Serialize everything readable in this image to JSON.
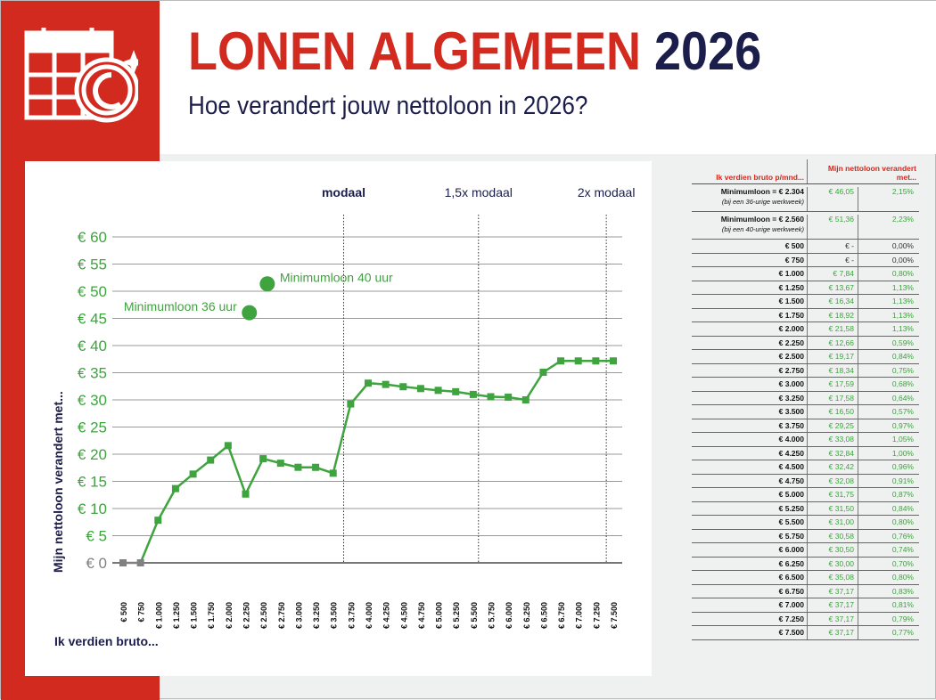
{
  "header": {
    "title_red": "LONEN ALGEMEEN",
    "title_year": "2026",
    "subtitle": "Hoe verandert jouw nettoloon in 2026?",
    "icon": "calendar-coin-icon"
  },
  "colors": {
    "brand_red": "#d22a1f",
    "navy": "#1b1e4b",
    "green": "#3fa33f",
    "grey": "#808080"
  },
  "chart_data": {
    "type": "line",
    "title": "",
    "xlabel": "Ik verdien bruto...",
    "ylabel": "Mijn nettoloon verandert met...",
    "ylim": [
      0,
      60
    ],
    "yticks": [
      "€ 0",
      "€ 5",
      "€ 10",
      "€ 15",
      "€ 20",
      "€ 25",
      "€ 30",
      "€ 35",
      "€ 40",
      "€ 45",
      "€ 50",
      "€ 55",
      "€ 60"
    ],
    "grid": true,
    "categories": [
      "€ 500",
      "€ 750",
      "€ 1.000",
      "€ 1.250",
      "€ 1.500",
      "€ 1.750",
      "€ 2.000",
      "€ 2.250",
      "€ 2.500",
      "€ 2.750",
      "€ 3.000",
      "€ 3.250",
      "€ 3.500",
      "€ 3.750",
      "€ 4.000",
      "€ 4.250",
      "€ 4.500",
      "€ 4.750",
      "€ 5.000",
      "€ 5.250",
      "€ 5.500",
      "€ 5.750",
      "€ 6.000",
      "€ 6.250",
      "€ 6.500",
      "€ 6.750",
      "€ 7.000",
      "€ 7.250",
      "€ 7.500"
    ],
    "x": [
      500,
      750,
      1000,
      1250,
      1500,
      1750,
      2000,
      2250,
      2500,
      2750,
      3000,
      3250,
      3500,
      3750,
      4000,
      4250,
      4500,
      4750,
      5000,
      5250,
      5500,
      5750,
      6000,
      6250,
      6500,
      6750,
      7000,
      7250,
      7500
    ],
    "values": [
      0,
      0,
      7.84,
      13.67,
      16.34,
      18.92,
      21.58,
      12.66,
      19.17,
      18.34,
      17.59,
      17.58,
      16.5,
      29.25,
      33.08,
      32.84,
      32.42,
      32.08,
      31.75,
      31.5,
      31.0,
      30.58,
      30.5,
      30.0,
      35.08,
      37.17,
      37.17,
      37.17,
      37.17
    ],
    "points": [
      {
        "label": "Minimumloon 36 uur",
        "x": 2304,
        "y": 46.05
      },
      {
        "label": "Minimumloon 40 uur",
        "x": 2560,
        "y": 51.36
      }
    ],
    "reference_lines": [
      {
        "label": "modaal",
        "x": 3650
      },
      {
        "label": "1,5x modaal",
        "x": 5575
      },
      {
        "label": "2x modaal",
        "x": 7400
      }
    ]
  },
  "table": {
    "col1_header": "Ik verdien bruto p/mnd...",
    "col2_header": "Mijn nettoloon verandert met...",
    "min_rows": [
      {
        "label": "Minimumloon = € 2.304",
        "note": "(bij een 36-urige werkweek)",
        "amount": "€ 46,05",
        "pct": "2,15%"
      },
      {
        "label": "Minimumloon = € 2.560",
        "note": "(bij een 40-urige werkweek)",
        "amount": "€ 51,36",
        "pct": "2,23%"
      }
    ],
    "rows": [
      [
        "€ 500",
        "€ -",
        "0,00%"
      ],
      [
        "€ 750",
        "€ -",
        "0,00%"
      ],
      [
        "€ 1.000",
        "€ 7,84",
        "0,80%"
      ],
      [
        "€ 1.250",
        "€ 13,67",
        "1,13%"
      ],
      [
        "€ 1.500",
        "€ 16,34",
        "1,13%"
      ],
      [
        "€ 1.750",
        "€ 18,92",
        "1,13%"
      ],
      [
        "€ 2.000",
        "€ 21,58",
        "1,13%"
      ],
      [
        "€ 2.250",
        "€ 12,66",
        "0,59%"
      ],
      [
        "€ 2.500",
        "€ 19,17",
        "0,84%"
      ],
      [
        "€ 2.750",
        "€ 18,34",
        "0,75%"
      ],
      [
        "€ 3.000",
        "€ 17,59",
        "0,68%"
      ],
      [
        "€ 3.250",
        "€ 17,58",
        "0,64%"
      ],
      [
        "€ 3.500",
        "€ 16,50",
        "0,57%"
      ],
      [
        "€ 3.750",
        "€ 29,25",
        "0,97%"
      ],
      [
        "€ 4.000",
        "€ 33,08",
        "1,05%"
      ],
      [
        "€ 4.250",
        "€ 32,84",
        "1,00%"
      ],
      [
        "€ 4.500",
        "€ 32,42",
        "0,96%"
      ],
      [
        "€ 4.750",
        "€ 32,08",
        "0,91%"
      ],
      [
        "€ 5.000",
        "€ 31,75",
        "0,87%"
      ],
      [
        "€ 5.250",
        "€ 31,50",
        "0,84%"
      ],
      [
        "€ 5.500",
        "€ 31,00",
        "0,80%"
      ],
      [
        "€ 5.750",
        "€ 30,58",
        "0,76%"
      ],
      [
        "€ 6.000",
        "€ 30,50",
        "0,74%"
      ],
      [
        "€ 6.250",
        "€ 30,00",
        "0,70%"
      ],
      [
        "€ 6.500",
        "€ 35,08",
        "0,80%"
      ],
      [
        "€ 6.750",
        "€ 37,17",
        "0,83%"
      ],
      [
        "€ 7.000",
        "€ 37,17",
        "0,81%"
      ],
      [
        "€ 7.250",
        "€ 37,17",
        "0,79%"
      ],
      [
        "€ 7.500",
        "€ 37,17",
        "0,77%"
      ]
    ]
  }
}
